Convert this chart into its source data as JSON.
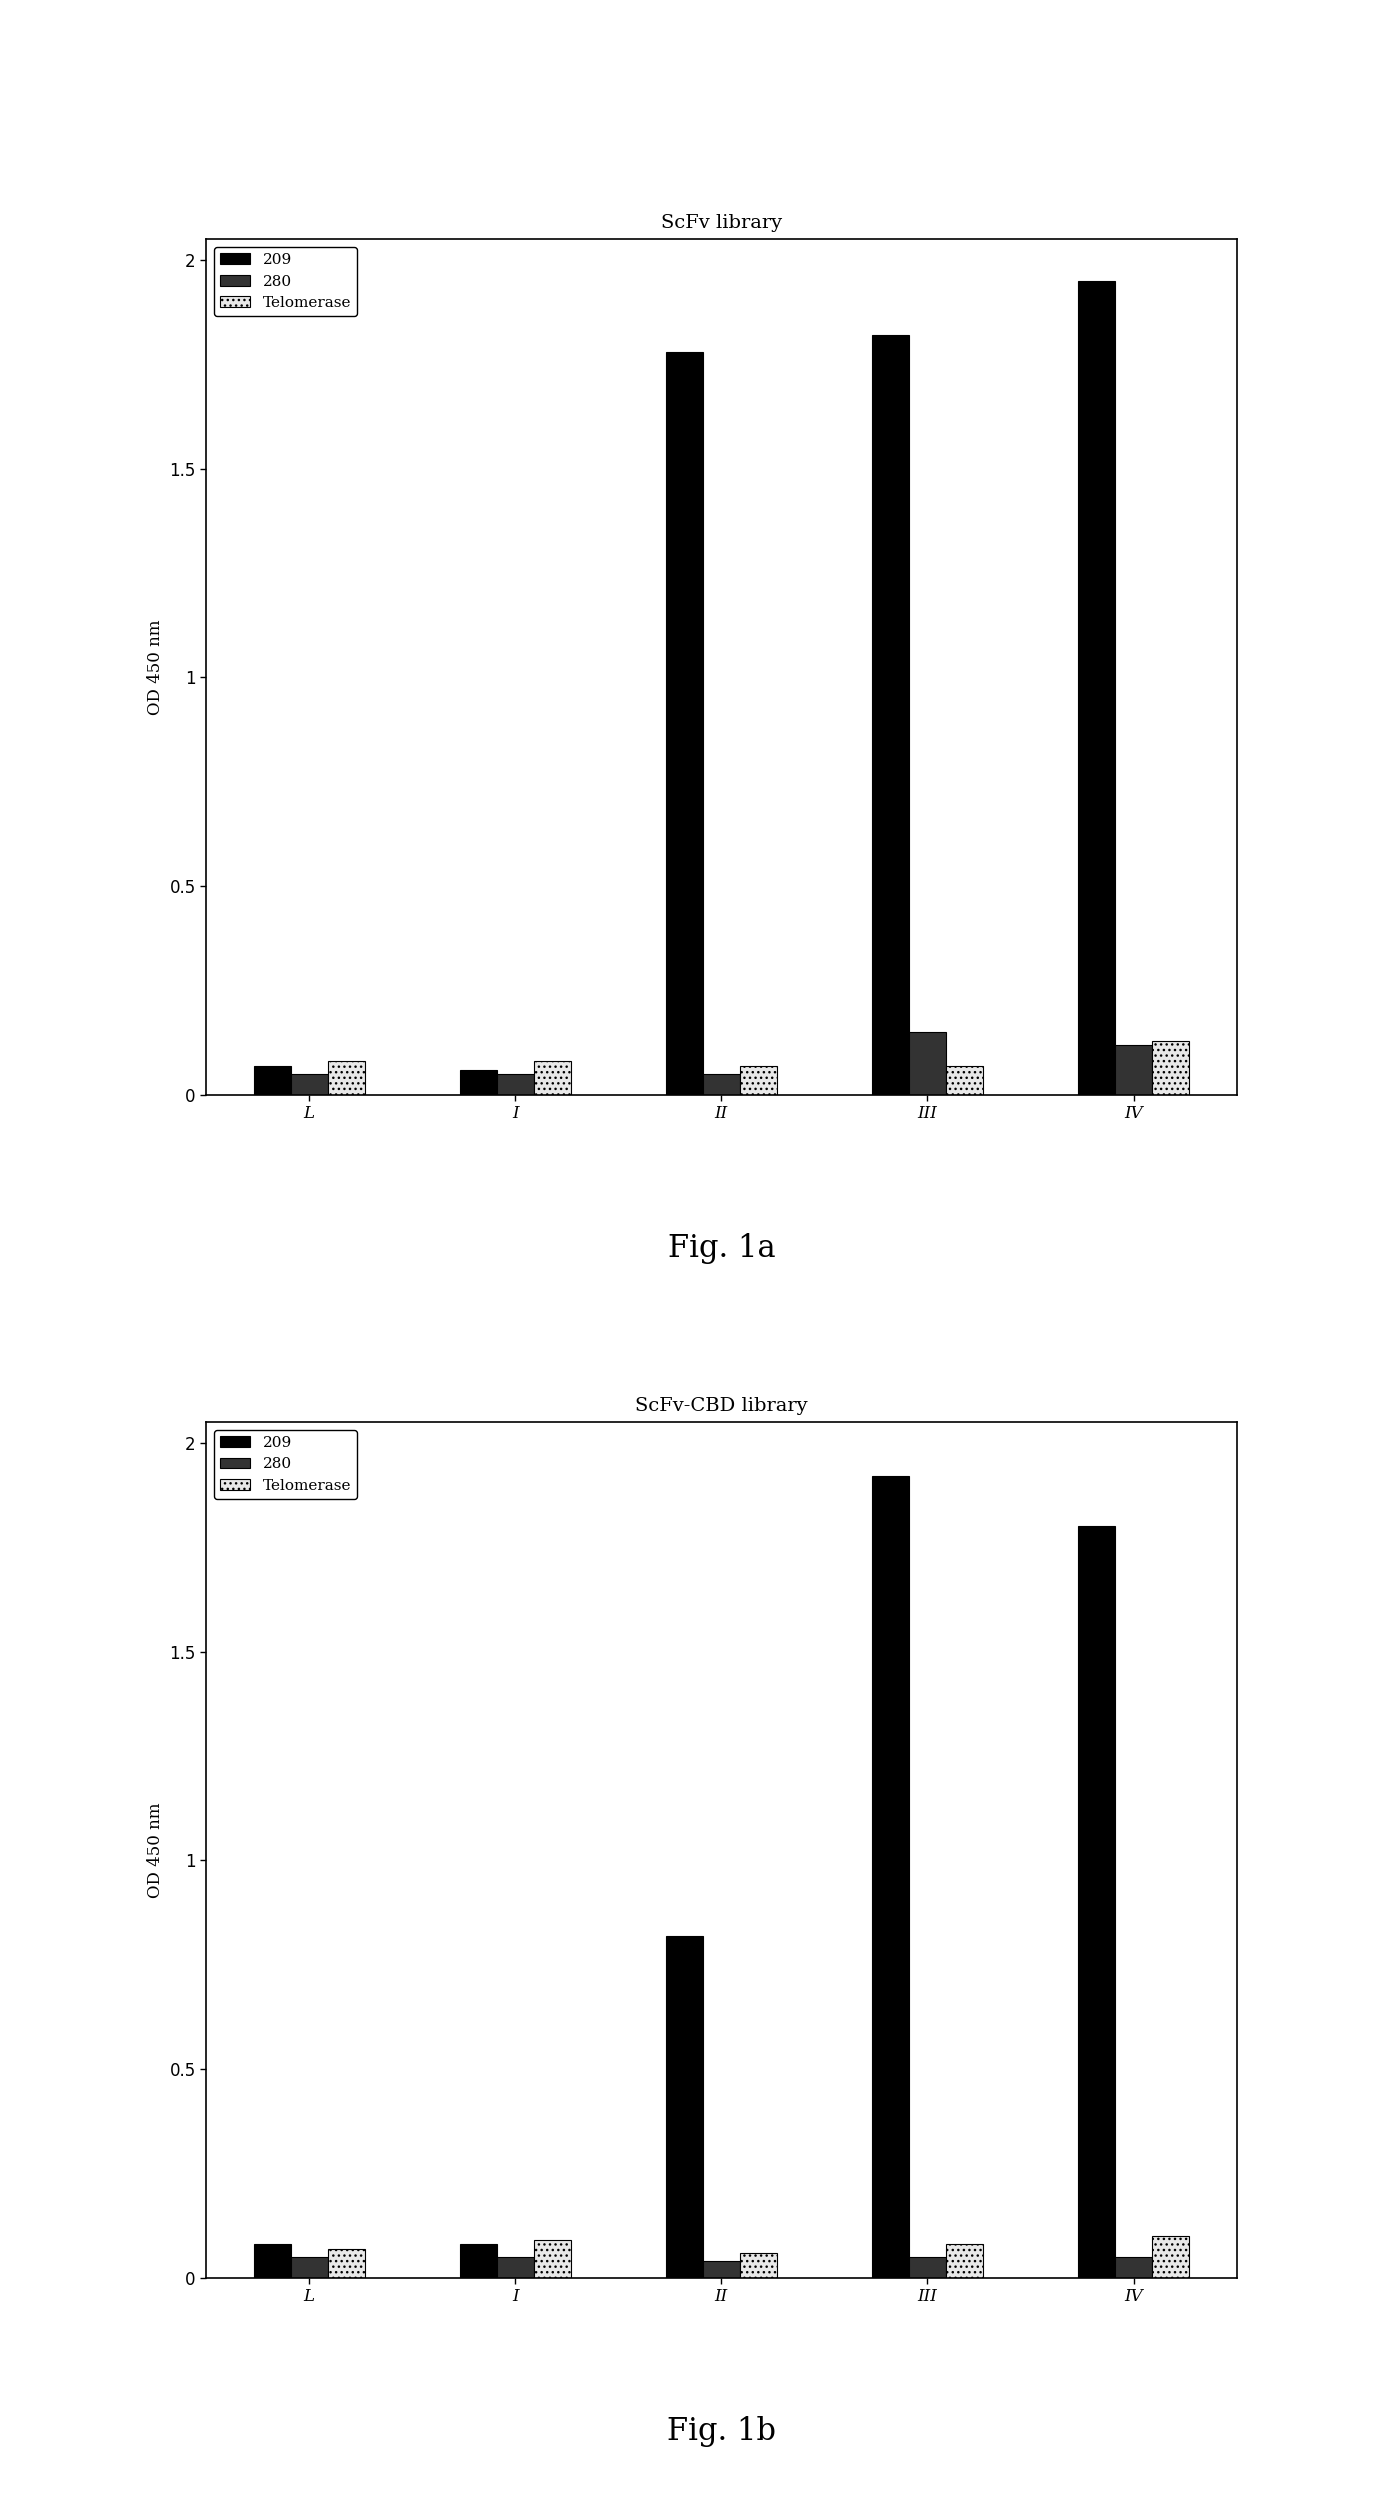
{
  "chart1": {
    "title": "ScFv library",
    "fig_label": "Fig. 1a",
    "categories": [
      "L",
      "I",
      "II",
      "III",
      "IV"
    ],
    "series": {
      "209": [
        0.07,
        0.06,
        1.78,
        1.82,
        1.95
      ],
      "280": [
        0.05,
        0.05,
        0.05,
        0.15,
        0.12
      ],
      "Telomerase": [
        0.08,
        0.08,
        0.07,
        0.07,
        0.13
      ]
    },
    "ylim": [
      0,
      2.05
    ],
    "yticks": [
      0,
      0.5,
      1,
      1.5,
      2
    ],
    "ylabel": "OD 450 nm"
  },
  "chart2": {
    "title": "ScFv-CBD library",
    "fig_label": "Fig. 1b",
    "categories": [
      "L",
      "I",
      "II",
      "III",
      "IV"
    ],
    "series": {
      "209": [
        0.08,
        0.08,
        0.82,
        1.92,
        1.8
      ],
      "280": [
        0.05,
        0.05,
        0.04,
        0.05,
        0.05
      ],
      "Telomerase": [
        0.07,
        0.09,
        0.06,
        0.08,
        0.1
      ]
    },
    "ylim": [
      0,
      2.05
    ],
    "yticks": [
      0,
      0.5,
      1,
      1.5,
      2
    ],
    "ylabel": "OD 450 nm"
  },
  "colors": {
    "209": "#000000",
    "280": "#333333",
    "Telomerase": "#e8e8e8"
  },
  "hatches": {
    "209": "",
    "280": "",
    "Telomerase": "..."
  },
  "bar_width": 0.18,
  "background_color": "#ffffff",
  "title_fontsize": 14,
  "label_fontsize": 12,
  "tick_fontsize": 12,
  "legend_fontsize": 11,
  "fig_label_fontsize": 22
}
